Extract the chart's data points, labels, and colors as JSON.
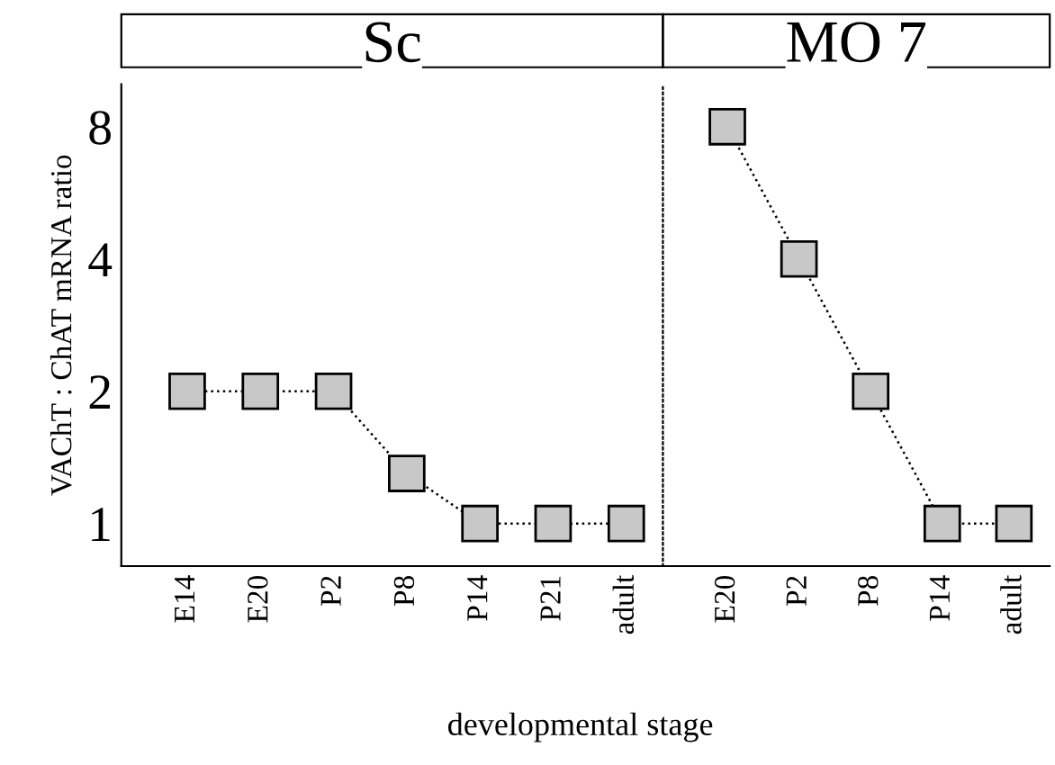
{
  "chart_data": [
    {
      "type": "line",
      "title": "Sc",
      "xlabel": "developmental stage",
      "ylabel": "VAChT : ChAT mRNA ratio",
      "categories": [
        "E14",
        "E20",
        "P2",
        "P8",
        "P14",
        "P21",
        "adult"
      ],
      "series": [
        {
          "color": "#c8c8c8",
          "values": [
            2,
            2,
            2,
            1.3,
            1,
            1,
            1
          ]
        }
      ],
      "log": true,
      "ylim": [
        0.8,
        10
      ],
      "yticks": [
        1,
        2,
        4,
        8
      ],
      "marker": "square",
      "line_style": "dotted",
      "grid": false,
      "legend": false
    },
    {
      "type": "line",
      "title": "MO 7",
      "categories": [
        "E20",
        "P2",
        "P8",
        "P14",
        "adult"
      ],
      "series": [
        {
          "color": "#c8c8c8",
          "values": [
            8,
            4,
            2,
            1,
            1
          ]
        }
      ],
      "log": true,
      "ylim": [
        0.8,
        10
      ],
      "yticks": [
        1,
        2,
        4,
        8
      ],
      "marker": "square",
      "line_style": "dotted",
      "grid": false,
      "legend": false,
      "tick_labels": "x"
    }
  ]
}
